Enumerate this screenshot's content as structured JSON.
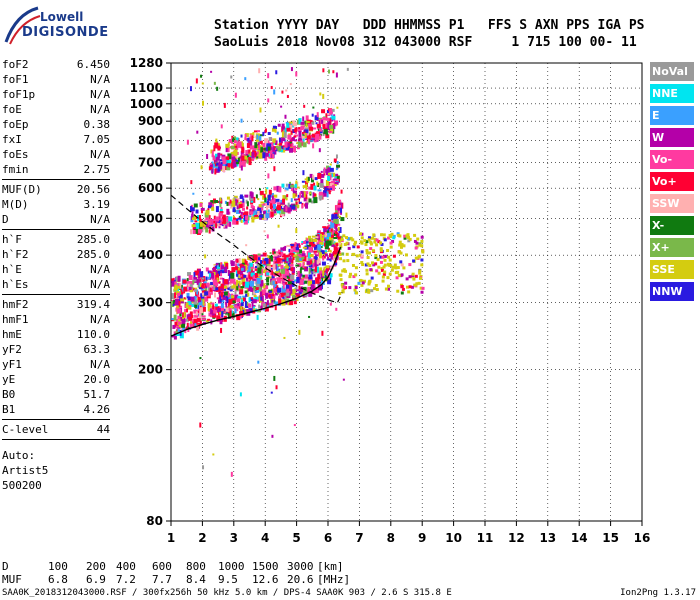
{
  "logo": {
    "line1": "Lowell",
    "line2": "DIGISONDE"
  },
  "header": {
    "line1": "Station YYYY DAY   DDD HHMMSS P1   FFS S AXN PPS IGA PS",
    "line2": "SaoLuis 2018 Nov08 312 043000 RSF     1 715 100 00- 11"
  },
  "params": [
    {
      "k": "foF2",
      "v": "6.450"
    },
    {
      "k": "foF1",
      "v": "N/A"
    },
    {
      "k": "foF1p",
      "v": "N/A"
    },
    {
      "k": "foE",
      "v": "N/A"
    },
    {
      "k": "foEp",
      "v": "0.38"
    },
    {
      "k": "fxI",
      "v": "7.05"
    },
    {
      "k": "foEs",
      "v": "N/A"
    },
    {
      "k": "fmin",
      "v": "2.75"
    },
    {
      "sep": true
    },
    {
      "k": "MUF(D)",
      "v": "20.56"
    },
    {
      "k": "M(D)",
      "v": "3.19"
    },
    {
      "k": "D",
      "v": "N/A"
    },
    {
      "sep": true
    },
    {
      "k": "h`F",
      "v": "285.0"
    },
    {
      "k": "h`F2",
      "v": "285.0"
    },
    {
      "k": "h`E",
      "v": "N/A"
    },
    {
      "k": "h`Es",
      "v": "N/A"
    },
    {
      "sep": true
    },
    {
      "k": "hmF2",
      "v": "319.4"
    },
    {
      "k": "hmF1",
      "v": "N/A"
    },
    {
      "k": "hmE",
      "v": "110.0"
    },
    {
      "k": "yF2",
      "v": "63.3"
    },
    {
      "k": "yF1",
      "v": "N/A"
    },
    {
      "k": "yE",
      "v": "20.0"
    },
    {
      "k": "B0",
      "v": "51.7"
    },
    {
      "k": "B1",
      "v": "4.26"
    },
    {
      "sep": true
    },
    {
      "k": "C-level",
      "v": "44"
    },
    {
      "sep": true
    }
  ],
  "auto": [
    "Auto:",
    "Artist5",
    "500200"
  ],
  "legend": [
    {
      "label": "NoVal",
      "color": "#9a9a9a"
    },
    {
      "label": "NNE",
      "color": "#00e5f0"
    },
    {
      "label": "E",
      "color": "#3aa0ff"
    },
    {
      "label": "W",
      "color": "#b400a8"
    },
    {
      "label": "Vo-",
      "color": "#ff3aa0"
    },
    {
      "label": "Vo+",
      "color": "#ff0033"
    },
    {
      "label": "SSW",
      "color": "#ffb0b0"
    },
    {
      "label": "X-",
      "color": "#107a10"
    },
    {
      "label": "X+",
      "color": "#7ab84a"
    },
    {
      "label": "SSE",
      "color": "#d4cc10"
    },
    {
      "label": "NNW",
      "color": "#2a1ae0"
    }
  ],
  "muf_table": {
    "d_label": "D",
    "d_values": [
      "100",
      "200",
      "400",
      "600",
      "800",
      "1000",
      "1500",
      "3000"
    ],
    "d_unit": "[km]",
    "m_label": "MUF",
    "m_values": [
      "6.8",
      "6.9",
      "7.2",
      "7.7",
      "8.4",
      "9.5",
      "12.6",
      "20.6"
    ],
    "m_unit": "[MHz]"
  },
  "footer": {
    "left": "SAA0K_2018312043000.RSF / 300fx256h 50 kHz 5.0 km / DPS-4 SAA0K 903 / 2.6 S 315.8 E",
    "right": "Ion2Png 1.3.17"
  },
  "chart_data": {
    "type": "scatter",
    "xlim": [
      1,
      16
    ],
    "ylim": [
      80,
      1280
    ],
    "x_ticks": [
      "1",
      "2",
      "3",
      "4",
      "5",
      "6",
      "7",
      "8",
      "9",
      "10",
      "11",
      "12",
      "13",
      "14",
      "15",
      "16"
    ],
    "y_ticks": [
      "80",
      "200",
      "300",
      "400",
      "500",
      "600",
      "700",
      "800",
      "900",
      "1000",
      "1100",
      "1280"
    ],
    "y_scale": "log",
    "grid": true,
    "traces": [
      {
        "name": "F2 O-trace",
        "x": [
          1.0,
          1.5,
          2.0,
          2.5,
          3.0,
          3.5,
          4.0,
          4.5,
          5.0,
          5.5,
          5.8,
          6.0,
          6.2,
          6.4
        ],
        "y": [
          245,
          255,
          263,
          270,
          276,
          283,
          290,
          298,
          308,
          322,
          335,
          350,
          380,
          420
        ]
      },
      {
        "name": "2nd hop",
        "x": [
          1.6,
          2.0,
          3.0,
          4.0,
          5.0,
          5.5,
          6.0,
          6.3
        ],
        "y": [
          485,
          495,
          515,
          535,
          560,
          585,
          620,
          660
        ]
      },
      {
        "name": "3rd hop",
        "x": [
          2.2,
          3.0,
          4.0,
          5.0,
          5.8,
          6.2
        ],
        "y": [
          700,
          730,
          770,
          815,
          860,
          900
        ]
      },
      {
        "name": "profile",
        "x": [
          1.0,
          1.5,
          2.0,
          2.5,
          3.0,
          3.5,
          4.0,
          4.5,
          5.0,
          5.5,
          6.0,
          6.3,
          6.45
        ],
        "y": [
          575,
          530,
          490,
          455,
          425,
          395,
          370,
          350,
          332,
          318,
          305,
          300,
          319
        ]
      }
    ]
  }
}
